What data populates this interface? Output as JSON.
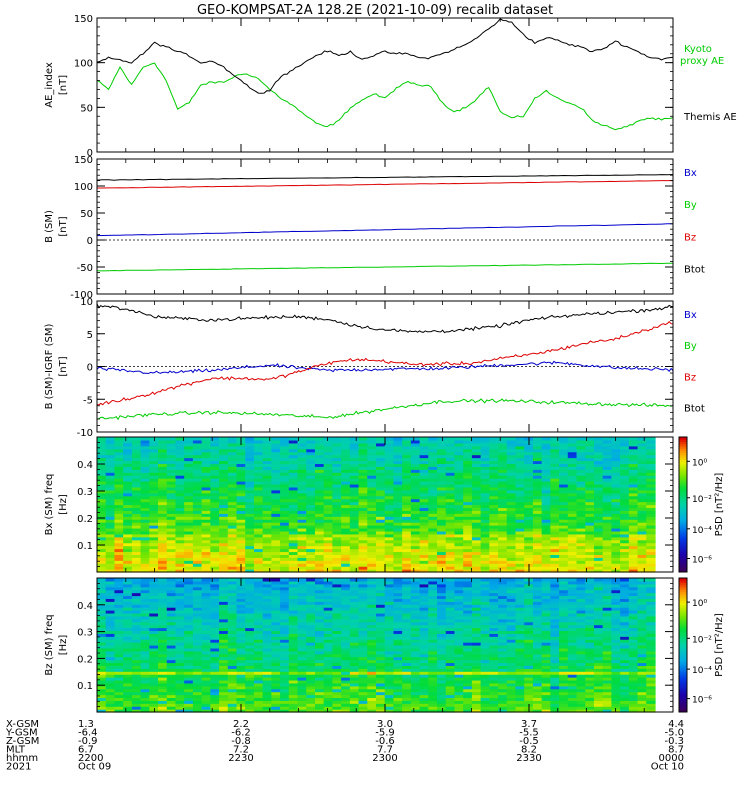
{
  "title": "GEO-KOMPSAT-2A 128.2E (2021-10-09) recalib dataset",
  "chart_data": [
    {
      "type": "line",
      "ylabel": "AE_index [nT]",
      "ylim": [
        0,
        150
      ],
      "yticks": [
        0,
        50,
        100,
        150
      ],
      "series": [
        {
          "name": "Kyoto proxy AE",
          "color": "#00cc00",
          "t": [
            0,
            2,
            4,
            6,
            8,
            10,
            12,
            14,
            16,
            18,
            20,
            22,
            24,
            26,
            28,
            30,
            32,
            34,
            36,
            38,
            40,
            42,
            44,
            46,
            48,
            50,
            52,
            54,
            56,
            58,
            60,
            62,
            64,
            66,
            68,
            70,
            72,
            74,
            76,
            78,
            80,
            82,
            84,
            86,
            88,
            90,
            92,
            94,
            96,
            98,
            100
          ],
          "values": [
            80,
            70,
            95,
            75,
            95,
            100,
            80,
            48,
            55,
            75,
            78,
            78,
            85,
            88,
            82,
            70,
            60,
            52,
            42,
            32,
            28,
            35,
            50,
            58,
            65,
            60,
            72,
            78,
            75,
            73,
            55,
            45,
            50,
            60,
            73,
            45,
            38,
            40,
            60,
            68,
            60,
            55,
            50,
            35,
            30,
            25,
            28,
            35,
            38,
            36,
            38
          ]
        },
        {
          "name": "Themis AE",
          "color": "#000000",
          "t": [
            0,
            2,
            4,
            6,
            8,
            10,
            12,
            14,
            16,
            18,
            20,
            22,
            24,
            26,
            28,
            30,
            32,
            34,
            36,
            38,
            40,
            42,
            44,
            46,
            48,
            50,
            52,
            54,
            56,
            58,
            60,
            62,
            64,
            66,
            68,
            70,
            72,
            74,
            76,
            78,
            80,
            82,
            84,
            86,
            88,
            90,
            92,
            94,
            96,
            98,
            100
          ],
          "values": [
            100,
            105,
            103,
            100,
            110,
            122,
            118,
            112,
            108,
            100,
            102,
            95,
            85,
            75,
            65,
            70,
            85,
            92,
            100,
            108,
            113,
            108,
            112,
            104,
            108,
            112,
            110,
            110,
            105,
            106,
            110,
            115,
            120,
            128,
            138,
            148,
            145,
            132,
            122,
            128,
            125,
            120,
            118,
            112,
            116,
            124,
            118,
            112,
            106,
            104,
            106
          ]
        }
      ],
      "legend": [
        "Kyoto",
        "proxy AE",
        "Themis AE"
      ]
    },
    {
      "type": "line",
      "ylabel": "B (SM) [nT]",
      "ylim": [
        -100,
        150
      ],
      "yticks": [
        -100,
        -50,
        0,
        50,
        100,
        150
      ],
      "series": [
        {
          "name": "Bx",
          "color": "#0000cc",
          "t": [
            0,
            100
          ],
          "values": [
            8,
            30
          ]
        },
        {
          "name": "By",
          "color": "#00cc00",
          "t": [
            0,
            100
          ],
          "values": [
            -57,
            -43
          ]
        },
        {
          "name": "Bz",
          "color": "#dd0000",
          "t": [
            0,
            100
          ],
          "values": [
            96,
            110
          ]
        },
        {
          "name": "Btot",
          "color": "#000000",
          "t": [
            0,
            100
          ],
          "values": [
            111,
            121
          ]
        }
      ],
      "legend": [
        "Bx",
        "By",
        "Bz",
        "Btot"
      ]
    },
    {
      "type": "line",
      "ylabel": "B (SM)-IGRF (SM) [nT]",
      "ylim": [
        -10,
        10
      ],
      "yticks": [
        -10,
        -5,
        0,
        5,
        10
      ],
      "series": [
        {
          "name": "Bx",
          "color": "#0000cc",
          "t": [
            0,
            10,
            20,
            30,
            40,
            50,
            60,
            70,
            80,
            90,
            100
          ],
          "values": [
            -0.3,
            -1.0,
            -0.6,
            0.2,
            -0.6,
            -0.4,
            -0.3,
            0.2,
            0.6,
            -0.2,
            -0.5
          ]
        },
        {
          "name": "By",
          "color": "#00cc00",
          "t": [
            0,
            10,
            20,
            30,
            40,
            50,
            60,
            70,
            80,
            90,
            100
          ],
          "values": [
            -8.0,
            -7.3,
            -7.0,
            -7.3,
            -7.8,
            -6.5,
            -5.3,
            -5.2,
            -5.5,
            -5.8,
            -6.0
          ]
        },
        {
          "name": "Bz",
          "color": "#dd0000",
          "t": [
            0,
            5,
            10,
            15,
            20,
            25,
            30,
            35,
            40,
            45,
            50,
            55,
            60,
            65,
            70,
            75,
            80,
            85,
            90,
            95,
            100
          ],
          "values": [
            -5.8,
            -5.0,
            -4.0,
            -2.8,
            -1.8,
            -1.8,
            -2.0,
            -0.8,
            0.5,
            1.1,
            0.8,
            0.3,
            0.4,
            0.5,
            1.2,
            1.8,
            2.6,
            3.6,
            4.2,
            5.5,
            6.8
          ]
        },
        {
          "name": "Btot",
          "color": "#000000",
          "t": [
            0,
            5,
            10,
            15,
            20,
            25,
            30,
            35,
            40,
            45,
            50,
            55,
            60,
            65,
            70,
            75,
            80,
            85,
            90,
            95,
            100
          ],
          "values": [
            9.3,
            8.8,
            7.6,
            7.3,
            7.1,
            7.3,
            7.5,
            7.6,
            7.2,
            6.2,
            5.6,
            5.3,
            5.4,
            5.7,
            6.2,
            7.1,
            7.6,
            8.0,
            8.3,
            8.6,
            9.1
          ]
        }
      ],
      "legend": [
        "Bx",
        "By",
        "Bz",
        "Btot"
      ]
    },
    {
      "type": "heatmap",
      "ylabel": "Bx (SM) freq [Hz]",
      "ylim": [
        0,
        0.5
      ],
      "yticks": [
        0.1,
        0.2,
        0.3,
        0.4
      ],
      "colorbar_label": "PSD [nT²/Hz]",
      "colorbar_ticks": [
        "10⁰",
        "10⁻²",
        "10⁻⁴",
        "10⁻⁶"
      ]
    },
    {
      "type": "heatmap",
      "ylabel": "Bz (SM) freq [Hz]",
      "ylim": [
        0,
        0.5
      ],
      "yticks": [
        0.1,
        0.2,
        0.3,
        0.4
      ],
      "colorbar_label": "PSD [nT²/Hz]",
      "colorbar_ticks": [
        "10⁰",
        "10⁻²",
        "10⁻⁴",
        "10⁻⁶"
      ]
    }
  ],
  "xaxis": {
    "row_labels": [
      "X-GSM",
      "Y-GSM",
      "Z-GSM",
      "MLT",
      "hhmm",
      "2021"
    ],
    "columns": [
      {
        "t": 0,
        "values": [
          "1.3",
          "-6.4",
          "-0.9",
          "6.7",
          "2200",
          "Oct 09"
        ]
      },
      {
        "t": 25,
        "values": [
          "2.2",
          "-6.2",
          "-0.8",
          "7.2",
          "2230",
          ""
        ]
      },
      {
        "t": 50,
        "values": [
          "3.0",
          "-5.9",
          "-0.6",
          "7.7",
          "2300",
          ""
        ]
      },
      {
        "t": 75,
        "values": [
          "3.7",
          "-5.5",
          "-0.5",
          "8.2",
          "2330",
          ""
        ]
      },
      {
        "t": 100,
        "values": [
          "4.4",
          "-5.0",
          "-0.3",
          "8.7",
          "0000",
          "Oct 10"
        ]
      }
    ]
  }
}
